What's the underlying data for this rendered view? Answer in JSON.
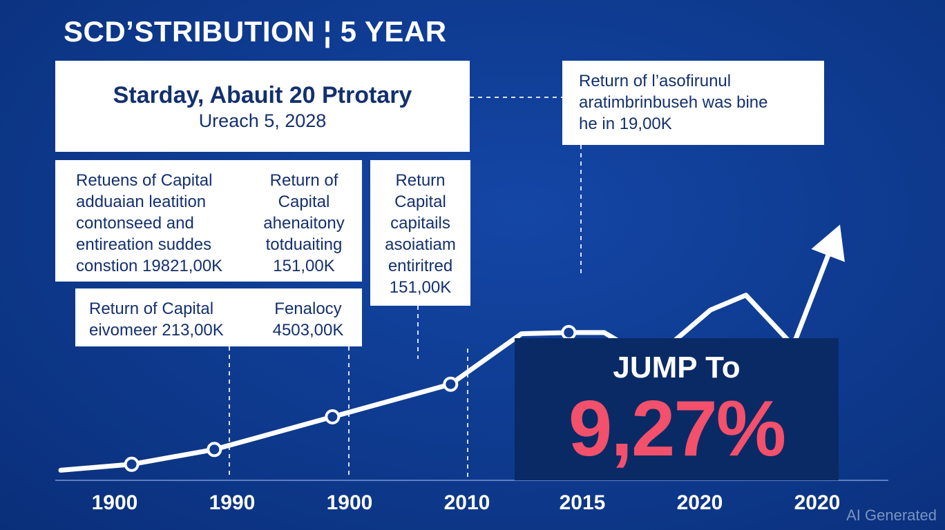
{
  "title": "SCD’STRIBUTION ¦ 5 YEAR",
  "callouts": {
    "main": {
      "line1": "Starday, Abauit 20 Ptrotary",
      "line2": "Ureach 5, 2028"
    },
    "top_right": [
      "Return of l’asofirunul",
      "aratimbrinbuseh was bine",
      "he in 19,00K"
    ],
    "left_col1": [
      "Retuens of Capital",
      "adduaian leatition",
      "contonseed and",
      "entireation suddes",
      "constion 19821,00K"
    ],
    "left_col2": [
      "Return of",
      "Capital",
      "ahenaitony",
      "totduaiting",
      "151,00K"
    ],
    "middle": [
      "Return",
      "Capital",
      "capitails",
      "asoiatiam",
      "entiritred",
      "151,00K"
    ],
    "bottom_col1": [
      "Return of Capital",
      "eivomeer 213,00K"
    ],
    "bottom_col2": [
      "Fenalocy",
      "4503,00K"
    ]
  },
  "highlight": {
    "label": "JUMP To",
    "value": "9,27%"
  },
  "watermark": "AI Generated",
  "colors": {
    "background": "#0f3c92",
    "line": "#ffffff",
    "accent": "#f2506b",
    "panel": "#0a2a66"
  },
  "chart_data": {
    "type": "line",
    "title": "SCD’STRIBUTION ¦ 5 YEAR",
    "tick_labels": [
      "1900",
      "1990",
      "1900",
      "2010",
      "2015",
      "2020",
      "2020"
    ],
    "points": [
      {
        "x": 0,
        "y": 10,
        "marker": false
      },
      {
        "x": 0.6,
        "y": 20,
        "marker": true
      },
      {
        "x": 1.3,
        "y": 45,
        "marker": true
      },
      {
        "x": 2.3,
        "y": 100,
        "marker": true
      },
      {
        "x": 3.3,
        "y": 155,
        "marker": true
      },
      {
        "x": 3.9,
        "y": 240,
        "marker": false
      },
      {
        "x": 4.3,
        "y": 242,
        "marker": true
      },
      {
        "x": 4.6,
        "y": 242,
        "marker": false
      },
      {
        "x": 5.0,
        "y": 195,
        "marker": true
      },
      {
        "x": 5.5,
        "y": 280,
        "marker": false
      },
      {
        "x": 5.8,
        "y": 305,
        "marker": false
      },
      {
        "x": 6.2,
        "y": 220,
        "marker": true
      },
      {
        "x": 6.55,
        "y": 400,
        "marker": false
      }
    ],
    "arrow_end": true,
    "grid": false
  }
}
